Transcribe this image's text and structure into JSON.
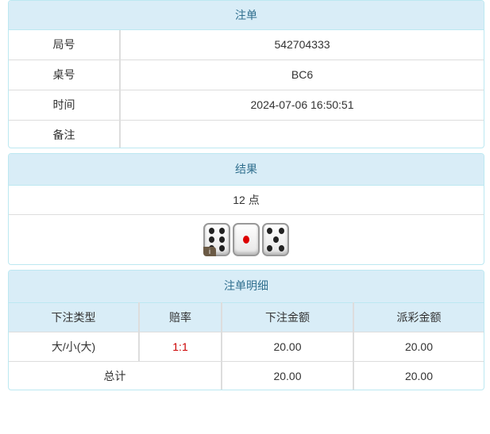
{
  "bet": {
    "title": "注单",
    "rows": [
      {
        "label": "局号",
        "value": "542704333"
      },
      {
        "label": "桌号",
        "value": "BC6"
      },
      {
        "label": "时间",
        "value": "2024-07-06 16:50:51"
      },
      {
        "label": "备注",
        "value": ""
      }
    ]
  },
  "result": {
    "title": "结果",
    "points": "12 点",
    "dice": [
      6,
      1,
      5
    ],
    "info_icon": "i"
  },
  "detail": {
    "title": "注单明细",
    "headers": [
      "下注类型",
      "赔率",
      "下注金额",
      "派彩金额"
    ],
    "rows": [
      {
        "type": "大/小(大)",
        "odds": "1:1",
        "bet": "20.00",
        "payout": "20.00"
      }
    ],
    "total": {
      "label": "总计",
      "bet": "20.00",
      "payout": "20.00"
    }
  },
  "colors": {
    "header_bg": "#d9edf7",
    "header_text": "#31708f",
    "odds": "#cc0000"
  }
}
